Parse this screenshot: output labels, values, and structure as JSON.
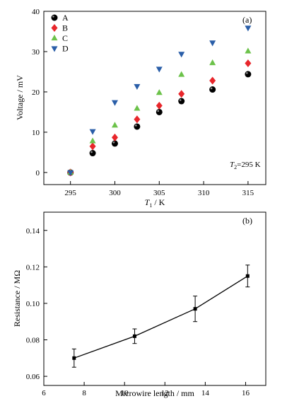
{
  "chart_data": [
    {
      "panel": "(a)",
      "type": "scatter",
      "xlabel_symbol": "T",
      "xlabel_sub": "1",
      "xlabel_unit": " / K",
      "ylabel": "Voltage / mV",
      "xlim": [
        292,
        317
      ],
      "ylim": [
        -3,
        40
      ],
      "xticks": [
        295,
        300,
        305,
        310,
        315
      ],
      "yticks": [
        0,
        10,
        20,
        30,
        40
      ],
      "annotation_symbol": "T",
      "annotation_sub": "2",
      "annotation_value": "=295 K",
      "legend_position": "top-left",
      "series": [
        {
          "name": "A",
          "marker": "circle",
          "color": "#000000",
          "x": [
            295,
            297.5,
            300,
            302.5,
            305,
            307.5,
            311,
            315
          ],
          "y": [
            0,
            4.8,
            7.2,
            11.4,
            15.0,
            17.7,
            20.6,
            24.4
          ]
        },
        {
          "name": "B",
          "marker": "diamond",
          "color": "#e8262b",
          "x": [
            295,
            297.5,
            300,
            302.5,
            305,
            307.5,
            311,
            315
          ],
          "y": [
            0,
            6.5,
            8.7,
            13.2,
            16.6,
            19.5,
            22.8,
            27.1
          ]
        },
        {
          "name": "C",
          "marker": "triangle-up",
          "color": "#6cc24a",
          "x": [
            295,
            297.5,
            300,
            302.5,
            305,
            307.5,
            311,
            315
          ],
          "y": [
            0,
            7.8,
            11.7,
            15.9,
            19.8,
            24.3,
            27.2,
            30.1
          ]
        },
        {
          "name": "D",
          "marker": "triangle-down",
          "color": "#2a5ea8",
          "x": [
            295,
            297.5,
            300,
            302.5,
            305,
            307.5,
            311,
            315
          ],
          "y": [
            0,
            10.2,
            17.4,
            21.4,
            25.7,
            29.4,
            32.2,
            35.9
          ]
        }
      ]
    },
    {
      "panel": "(b)",
      "type": "line",
      "xlabel": "Microwire length / mm",
      "ylabel": "Resistance / MΩ",
      "xlim": [
        6,
        17
      ],
      "ylim": [
        0.055,
        0.15
      ],
      "xticks": [
        6,
        8,
        10,
        12,
        14,
        16
      ],
      "yticks": [
        0.06,
        0.08,
        0.1,
        0.12,
        0.14
      ],
      "ytick_labels": [
        "0.06",
        "0.08",
        "0.10",
        "0.12",
        "0.14"
      ],
      "series": [
        {
          "marker": "square",
          "color": "#000000",
          "x": [
            7.5,
            10.5,
            13.5,
            16.1
          ],
          "y": [
            0.07,
            0.082,
            0.097,
            0.115
          ],
          "error": [
            0.005,
            0.004,
            0.007,
            0.006
          ]
        }
      ]
    }
  ]
}
